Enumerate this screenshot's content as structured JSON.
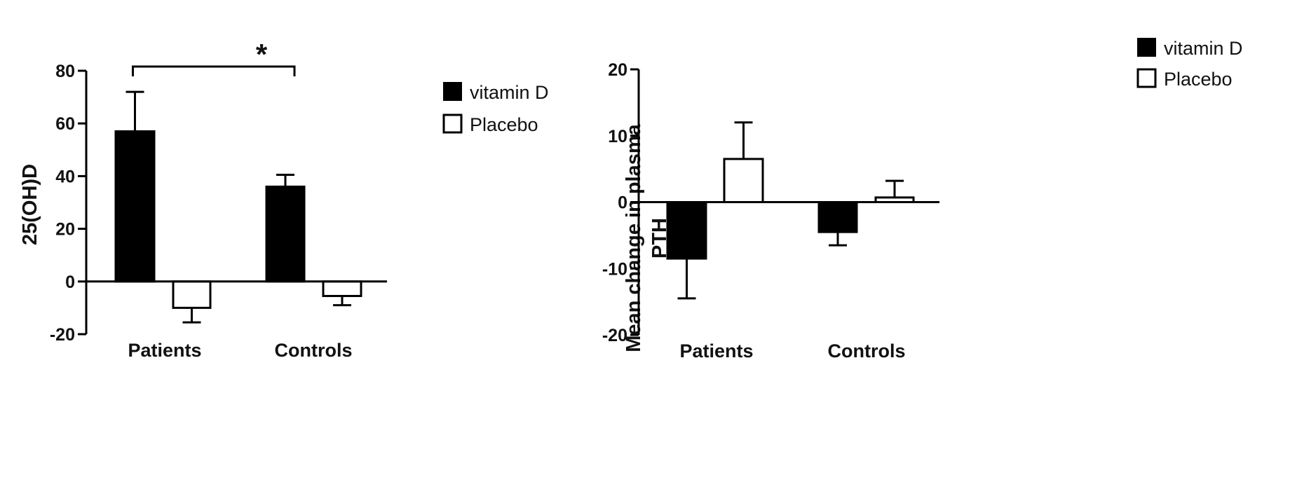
{
  "chart_data": [
    {
      "type": "bar",
      "categories": [
        "Patients",
        "Controls"
      ],
      "series": [
        {
          "name": "vitamin D",
          "color": "#000000",
          "values": [
            57,
            36
          ],
          "errors": [
            15,
            4.5
          ]
        },
        {
          "name": "Placebo",
          "color": "#ffffff",
          "values": [
            -10,
            -5.5
          ],
          "errors": [
            5.5,
            3.5
          ]
        }
      ],
      "ylabel": "25(OH)D",
      "ylim": [
        -20,
        80
      ],
      "yticks": [
        -20,
        0,
        20,
        40,
        60,
        80
      ],
      "yticklabels": [
        "-20",
        "0",
        "20",
        "40",
        "60",
        "80"
      ],
      "legend": "top-right",
      "grid": false,
      "annotations": [
        {
          "text": "*",
          "from": "Patients",
          "to": "Controls",
          "series": "vitamin D"
        }
      ]
    },
    {
      "type": "bar",
      "categories": [
        "Patients",
        "Controls"
      ],
      "series": [
        {
          "name": "vitamin D",
          "color": "#000000",
          "values": [
            -8.5,
            -4.5
          ],
          "errors": [
            6,
            2
          ]
        },
        {
          "name": "Placebo",
          "color": "#ffffff",
          "values": [
            6.5,
            0.7
          ],
          "errors": [
            5.5,
            2.5
          ]
        }
      ],
      "ylabel": [
        "Mean change in plasma",
        "PTH"
      ],
      "ylim": [
        -20,
        20
      ],
      "yticks": [
        -20,
        -10,
        0,
        10,
        20
      ],
      "yticklabels": [
        "-20",
        "-10",
        "0",
        "10",
        "20"
      ],
      "legend": "top-right",
      "grid": false
    }
  ]
}
